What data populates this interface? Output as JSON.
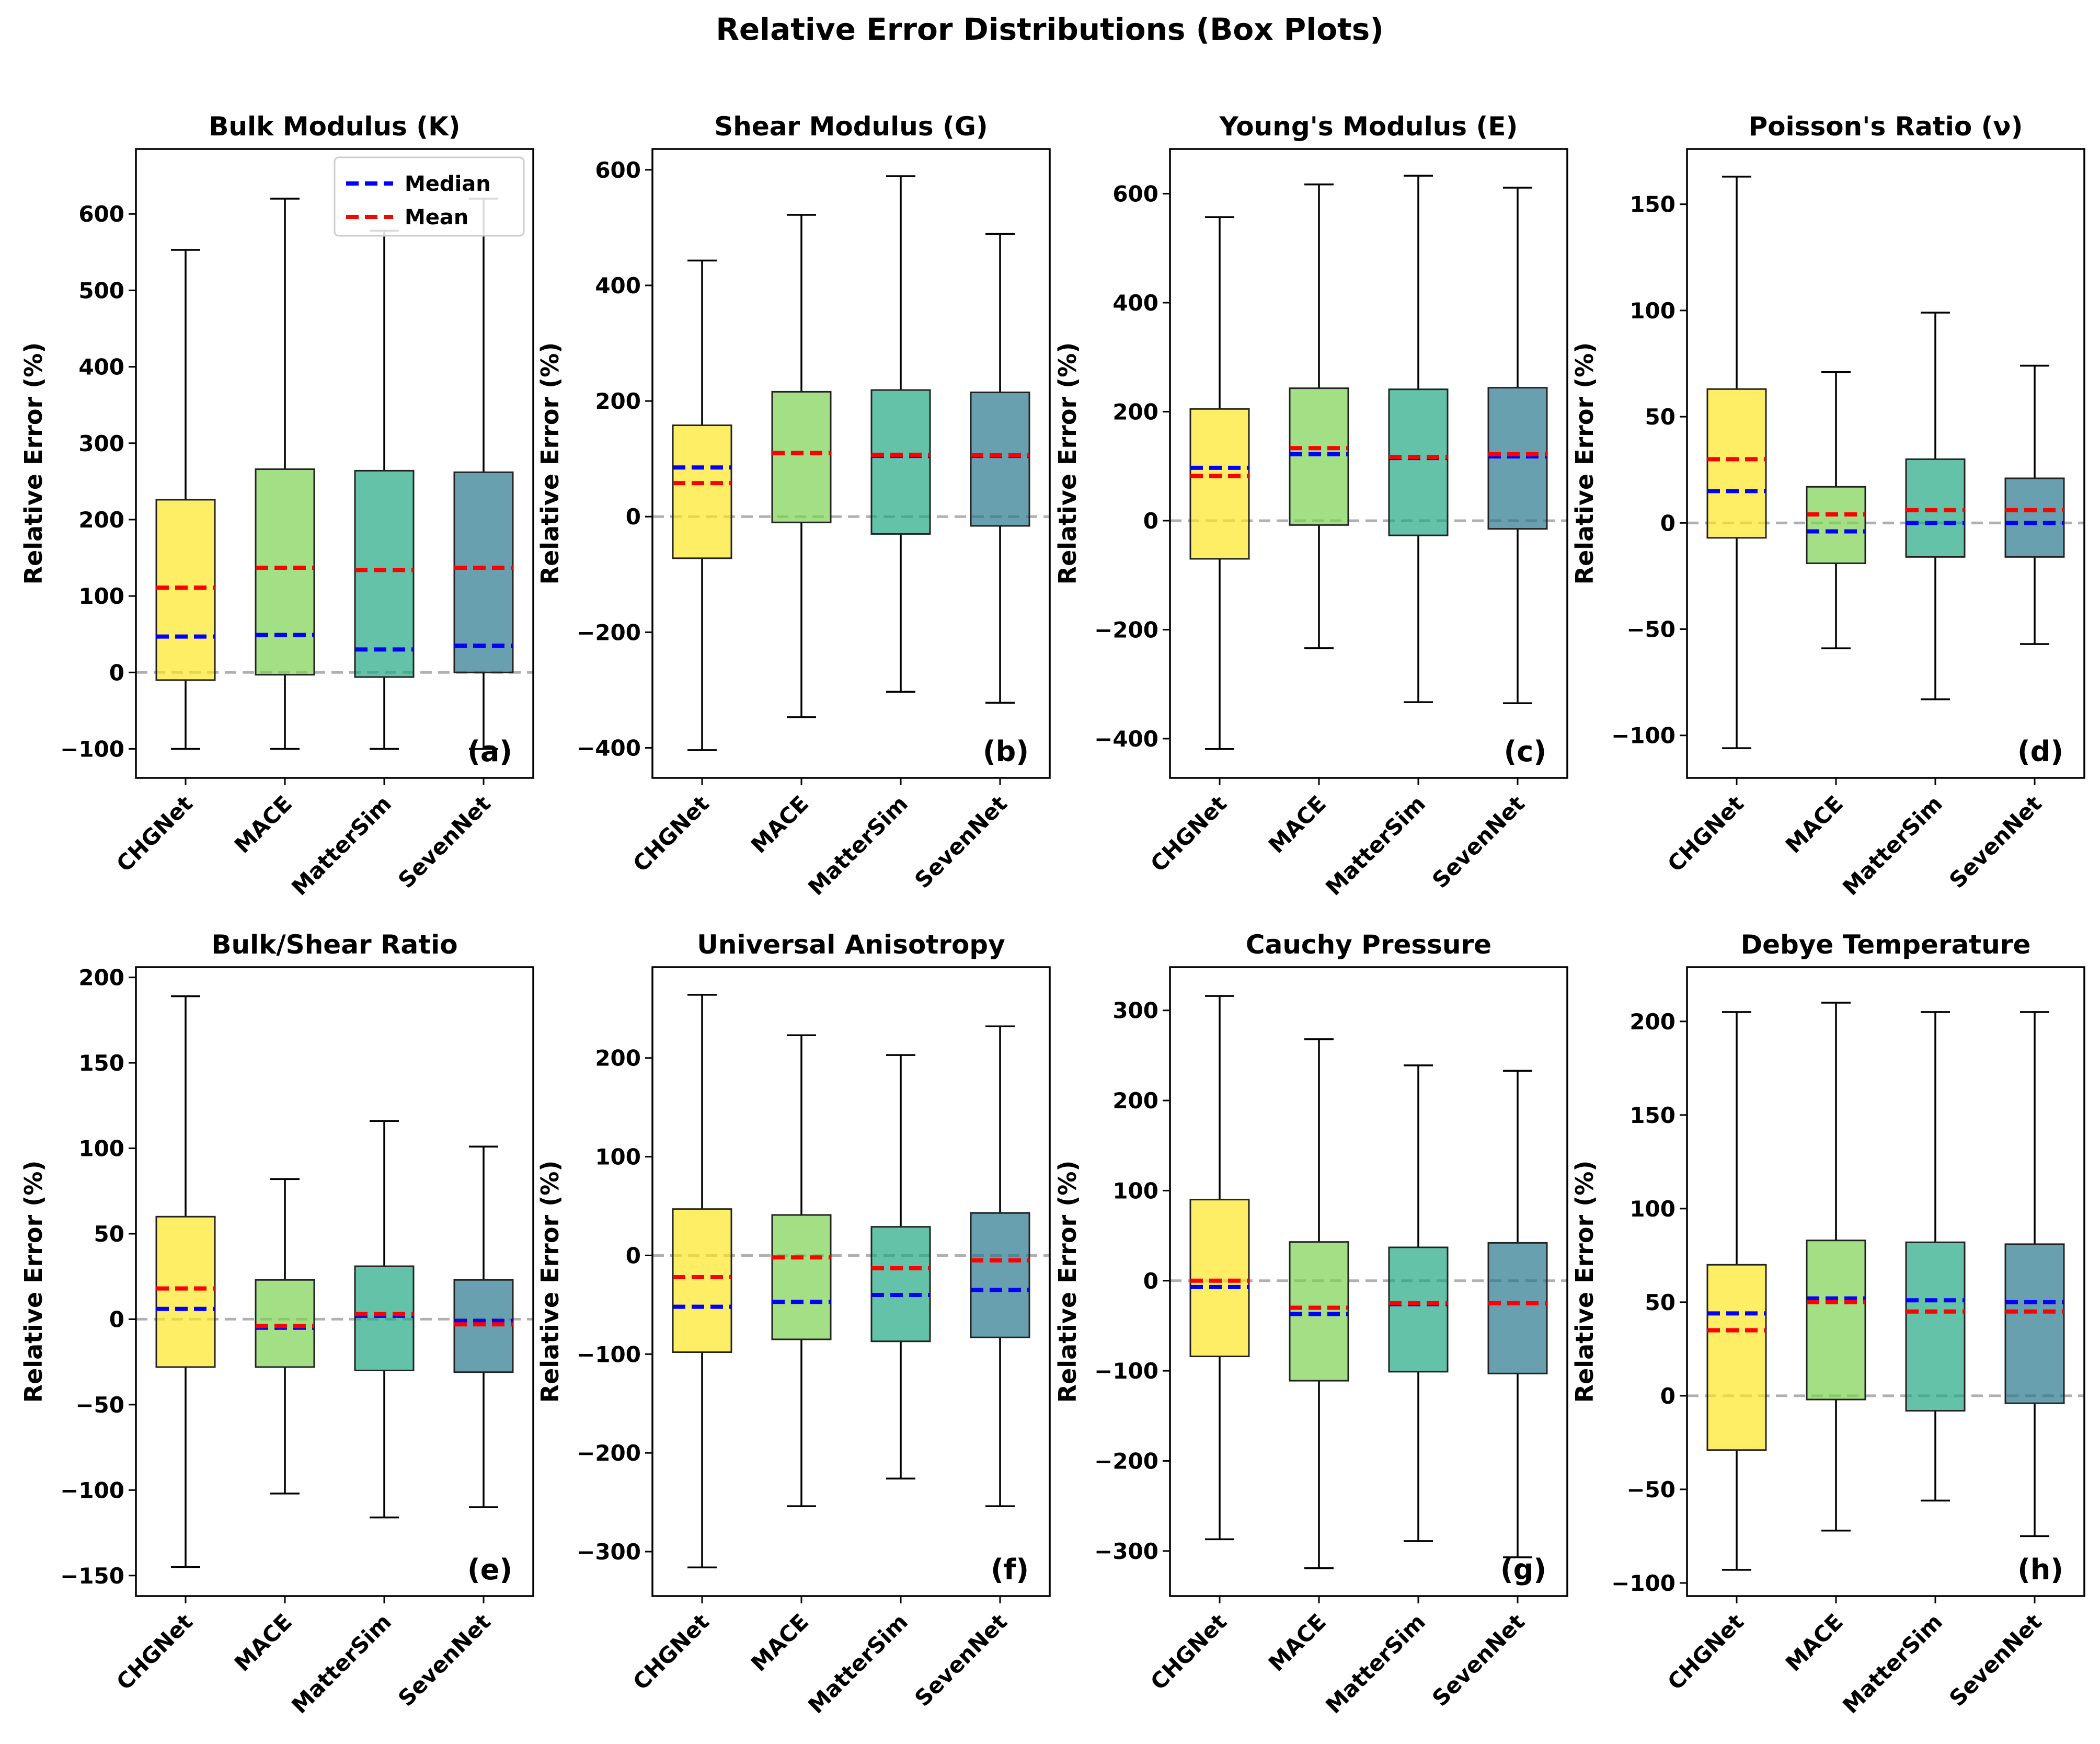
{
  "figure_title": "Relative Error Distributions (Box Plots)",
  "colors": {
    "CHGNet": "#fde725",
    "MACE": "#7ad151",
    "MatterSim": "#22a884",
    "SevenNet": "#2a788e",
    "median": "#0000ff",
    "mean": "#ff0000",
    "zero_line": "#b0b0b0"
  },
  "legend": {
    "median_label": "Median",
    "mean_label": "Mean"
  },
  "chart_data": [
    {
      "type": "box",
      "title": "Bulk Modulus (K)",
      "panel_label": "(a)",
      "ylabel": "Relative Error (%)",
      "ylim": [
        -138,
        685
      ],
      "yticks": [
        -100,
        0,
        100,
        200,
        300,
        400,
        500,
        600
      ],
      "categories": [
        "CHGNet",
        "MACE",
        "MatterSim",
        "SevenNet"
      ],
      "boxes": [
        {
          "whislo": -100,
          "q1": -10,
          "med": 47,
          "mean": 111,
          "q3": 226,
          "whishi": 553
        },
        {
          "whislo": -100,
          "q1": -3,
          "med": 49,
          "mean": 137,
          "q3": 266,
          "whishi": 620
        },
        {
          "whislo": -100,
          "q1": -6,
          "med": 30,
          "mean": 134,
          "q3": 264,
          "whishi": 578
        },
        {
          "whislo": -100,
          "q1": 0,
          "med": 35,
          "mean": 137,
          "q3": 262,
          "whishi": 620
        }
      ],
      "legend": true
    },
    {
      "type": "box",
      "title": "Shear Modulus (G)",
      "panel_label": "(b)",
      "ylabel": "Relative Error (%)",
      "ylim": [
        -452,
        636
      ],
      "yticks": [
        -400,
        -200,
        0,
        200,
        400,
        600
      ],
      "categories": [
        "CHGNet",
        "MACE",
        "MatterSim",
        "SevenNet"
      ],
      "boxes": [
        {
          "whislo": -404,
          "q1": -72,
          "med": 85,
          "mean": 58,
          "q3": 158,
          "whishi": 443
        },
        {
          "whislo": -347,
          "q1": -10,
          "med": 110,
          "mean": 110,
          "q3": 216,
          "whishi": 522
        },
        {
          "whislo": -303,
          "q1": -30,
          "med": 105,
          "mean": 107,
          "q3": 219,
          "whishi": 589
        },
        {
          "whislo": -322,
          "q1": -16,
          "med": 105,
          "mean": 106,
          "q3": 215,
          "whishi": 489
        }
      ]
    },
    {
      "type": "box",
      "title": "Young's Modulus (E)",
      "panel_label": "(c)",
      "ylabel": "Relative Error (%)",
      "ylim": [
        -472,
        682
      ],
      "yticks": [
        -400,
        -200,
        0,
        200,
        400,
        600
      ],
      "categories": [
        "CHGNet",
        "MACE",
        "MatterSim",
        "SevenNet"
      ],
      "boxes": [
        {
          "whislo": -419,
          "q1": -70,
          "med": 97,
          "mean": 82,
          "q3": 205,
          "whishi": 557
        },
        {
          "whislo": -234,
          "q1": -8,
          "med": 122,
          "mean": 133,
          "q3": 243,
          "whishi": 617
        },
        {
          "whislo": -333,
          "q1": -27,
          "med": 115,
          "mean": 117,
          "q3": 241,
          "whishi": 633
        },
        {
          "whislo": -335,
          "q1": -15,
          "med": 118,
          "mean": 122,
          "q3": 244,
          "whishi": 611
        }
      ]
    },
    {
      "type": "box",
      "title": "Poisson's Ratio (ν)",
      "panel_label": "(d)",
      "ylabel": "Relative Error (%)",
      "ylim": [
        -120,
        176
      ],
      "yticks": [
        -100,
        -50,
        0,
        50,
        100,
        150
      ],
      "categories": [
        "CHGNet",
        "MACE",
        "MatterSim",
        "SevenNet"
      ],
      "boxes": [
        {
          "whislo": -106,
          "q1": -7,
          "med": 15,
          "mean": 30,
          "q3": 63,
          "whishi": 163
        },
        {
          "whislo": -59,
          "q1": -19,
          "med": -4,
          "mean": 4,
          "q3": 17,
          "whishi": 71
        },
        {
          "whislo": -83,
          "q1": -16,
          "med": 0,
          "mean": 6,
          "q3": 30,
          "whishi": 99
        },
        {
          "whislo": -57,
          "q1": -16,
          "med": 0,
          "mean": 6,
          "q3": 21,
          "whishi": 74
        }
      ]
    },
    {
      "type": "box",
      "title": "Bulk/Shear Ratio",
      "panel_label": "(e)",
      "ylabel": "Relative Error (%)",
      "ylim": [
        -162,
        206
      ],
      "yticks": [
        -150,
        -100,
        -50,
        0,
        50,
        100,
        150,
        200
      ],
      "categories": [
        "CHGNet",
        "MACE",
        "MatterSim",
        "SevenNet"
      ],
      "boxes": [
        {
          "whislo": -145,
          "q1": -28,
          "med": 6,
          "mean": 18,
          "q3": 60,
          "whishi": 189
        },
        {
          "whislo": -102,
          "q1": -28,
          "med": -5,
          "mean": -4,
          "q3": 23,
          "whishi": 82
        },
        {
          "whislo": -116,
          "q1": -30,
          "med": 2,
          "mean": 3,
          "q3": 31,
          "whishi": 116
        },
        {
          "whislo": -110,
          "q1": -31,
          "med": -1,
          "mean": -3,
          "q3": 23,
          "whishi": 101
        }
      ]
    },
    {
      "type": "box",
      "title": "Universal Anisotropy",
      "panel_label": "(f)",
      "ylabel": "Relative Error (%)",
      "ylim": [
        -345,
        292
      ],
      "yticks": [
        -300,
        -200,
        -100,
        0,
        100,
        200
      ],
      "categories": [
        "CHGNet",
        "MACE",
        "MatterSim",
        "SevenNet"
      ],
      "boxes": [
        {
          "whislo": -316,
          "q1": -98,
          "med": -52,
          "mean": -22,
          "q3": 47,
          "whishi": 264
        },
        {
          "whislo": -254,
          "q1": -85,
          "med": -47,
          "mean": -2,
          "q3": 41,
          "whishi": 223
        },
        {
          "whislo": -226,
          "q1": -87,
          "med": -40,
          "mean": -13,
          "q3": 29,
          "whishi": 203
        },
        {
          "whislo": -254,
          "q1": -83,
          "med": -35,
          "mean": -5,
          "q3": 43,
          "whishi": 232
        }
      ]
    },
    {
      "type": "box",
      "title": "Cauchy Pressure",
      "panel_label": "(g)",
      "ylabel": "Relative Error (%)",
      "ylim": [
        -350,
        348
      ],
      "yticks": [
        -300,
        -200,
        -100,
        0,
        100,
        200,
        300
      ],
      "categories": [
        "CHGNet",
        "MACE",
        "MatterSim",
        "SevenNet"
      ],
      "boxes": [
        {
          "whislo": -287,
          "q1": -84,
          "med": -7,
          "mean": 0,
          "q3": 90,
          "whishi": 316
        },
        {
          "whislo": -319,
          "q1": -111,
          "med": -37,
          "mean": -30,
          "q3": 43,
          "whishi": 268
        },
        {
          "whislo": -289,
          "q1": -101,
          "med": -26,
          "mean": -25,
          "q3": 37,
          "whishi": 239
        },
        {
          "whislo": -307,
          "q1": -103,
          "med": -25,
          "mean": -25,
          "q3": 42,
          "whishi": 233
        }
      ]
    },
    {
      "type": "box",
      "title": "Debye Temperature",
      "panel_label": "(h)",
      "ylabel": "Relative Error (%)",
      "ylim": [
        -107,
        229
      ],
      "yticks": [
        -100,
        -50,
        0,
        50,
        100,
        150,
        200
      ],
      "categories": [
        "CHGNet",
        "MACE",
        "MatterSim",
        "SevenNet"
      ],
      "boxes": [
        {
          "whislo": -93,
          "q1": -29,
          "med": 44,
          "mean": 35,
          "q3": 70,
          "whishi": 205
        },
        {
          "whislo": -72,
          "q1": -2,
          "med": 52,
          "mean": 50,
          "q3": 83,
          "whishi": 210
        },
        {
          "whislo": -56,
          "q1": -8,
          "med": 51,
          "mean": 45,
          "q3": 82,
          "whishi": 205
        },
        {
          "whislo": -75,
          "q1": -4,
          "med": 50,
          "mean": 45,
          "q3": 81,
          "whishi": 205
        }
      ]
    }
  ]
}
